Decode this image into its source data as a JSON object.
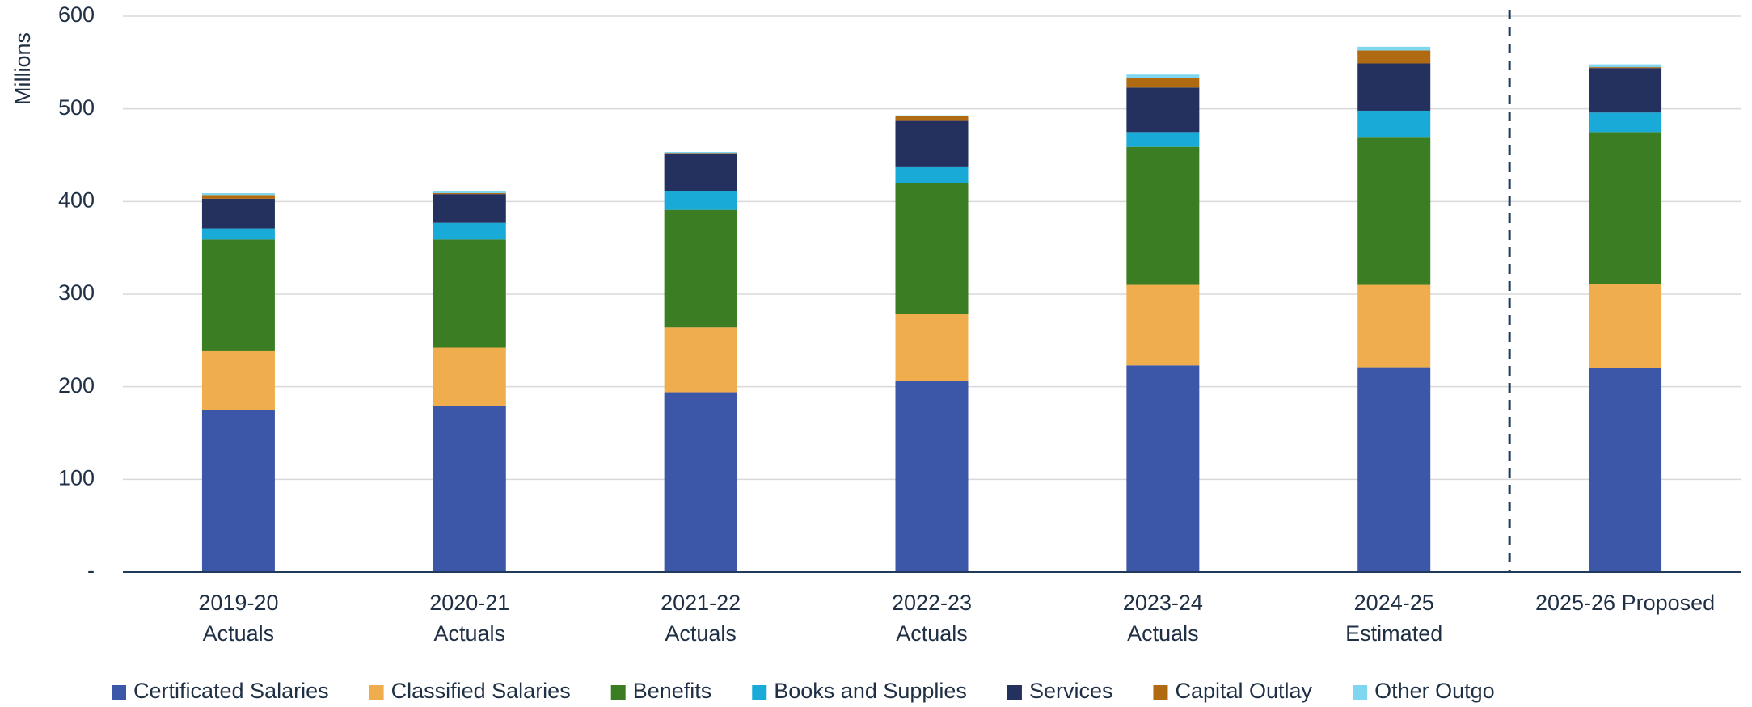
{
  "chart_data": {
    "type": "stacked-bar",
    "y_label": "Millions",
    "categories": [
      "2019-20\nActuals",
      "2020-21\nActuals",
      "2021-22\nActuals",
      "2022-23\nActuals",
      "2023-24\nActuals",
      "2024-25\nEstimated",
      "2025-26 Proposed"
    ],
    "series": [
      {
        "name": "Certificated Salaries",
        "color": "#3c57a8",
        "values": [
          175,
          179,
          194,
          206,
          223,
          221,
          220
        ]
      },
      {
        "name": "Classified Salaries",
        "color": "#f0ad4e",
        "values": [
          64,
          63,
          70,
          73,
          87,
          89,
          91
        ]
      },
      {
        "name": "Benefits",
        "color": "#3b7d23",
        "values": [
          120,
          117,
          127,
          141,
          149,
          159,
          164
        ]
      },
      {
        "name": "Books and Supplies",
        "color": "#1aaad7",
        "values": [
          12,
          18,
          20,
          17,
          16,
          29,
          21
        ]
      },
      {
        "name": "Services",
        "color": "#24305e",
        "values": [
          32,
          31,
          41,
          50,
          48,
          51,
          48
        ]
      },
      {
        "name": "Capital Outlay",
        "color": "#b06b12",
        "values": [
          4,
          1,
          0.5,
          5,
          10,
          14,
          1
        ]
      },
      {
        "name": "Other Outgo",
        "color": "#7fd6f0",
        "values": [
          2,
          2,
          1,
          1,
          4,
          4,
          3
        ]
      }
    ],
    "ylim": [
      0,
      600
    ],
    "yticks": [
      {
        "value": 0,
        "label": "-"
      },
      100,
      200,
      300,
      400,
      500,
      600
    ],
    "grid": true,
    "legend": "bottom"
  }
}
